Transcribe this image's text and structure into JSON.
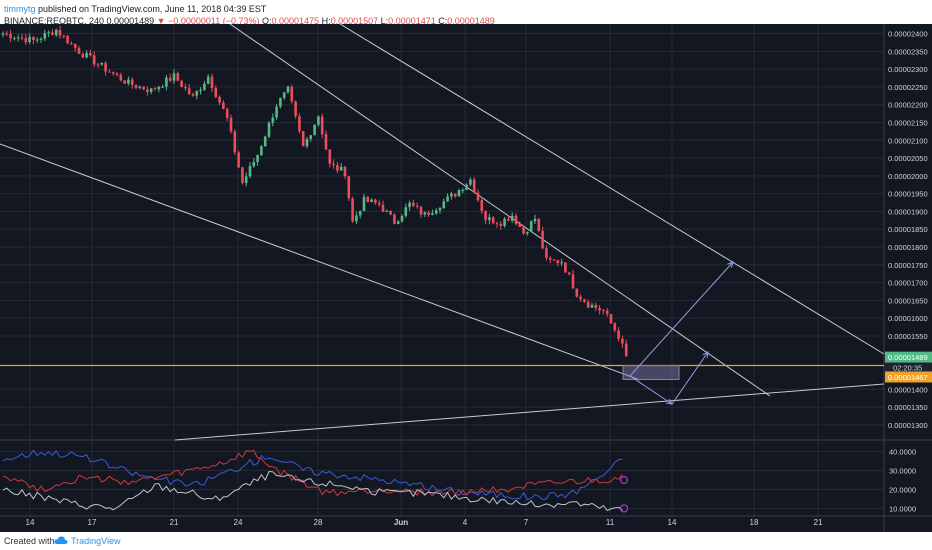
{
  "header": {
    "author": "timmytg",
    "published": "published on TradingView.com, June 11, 2018 04:39 EST",
    "symbol": "BINANCE:REQBTC, 240",
    "price": "0.00001489",
    "change_arrow": "▼",
    "change": "−0.00000011 (−0.73%)",
    "o_label": "O:",
    "o_value": "0.00001475",
    "h_label": "H:",
    "h_value": "0.00001507",
    "l_label": "L:",
    "l_value": "0.00001471",
    "c_label": "C:",
    "c_value": "0.00001489"
  },
  "footer": {
    "created_with": "Created with",
    "brand": "TradingView",
    "logo_icon": "tradingview-cloud-icon"
  },
  "colors": {
    "background": "#131722",
    "grid": "#262a36",
    "bull": "#53b987",
    "bear": "#eb4d5c",
    "trendline": "#c8cad1",
    "projection": "#8f9fe0",
    "support": "#f0a32b",
    "zone": "#8a80b8",
    "axis_text": "#d1d4dc"
  },
  "chart_data": [
    {
      "type": "candlestick",
      "y_ticks": [
        "0.00002400",
        "0.00002350",
        "0.00002300",
        "0.00002250",
        "0.00002200",
        "0.00002150",
        "0.00002100",
        "0.00002050",
        "0.00002000",
        "0.00001950",
        "0.00001900",
        "0.00001850",
        "0.00001800",
        "0.00001750",
        "0.00001700",
        "0.00001650",
        "0.00001600",
        "0.00001550",
        "0.00001400",
        "0.00001350",
        "0.00001300"
      ],
      "ylim": [
        1.28e-05,
        2.41e-05
      ],
      "x_ticks": [
        "14",
        "17",
        "21",
        "24",
        "28",
        "Jun",
        "4",
        "7",
        "11",
        "14",
        "18",
        "21"
      ],
      "last_price_label": "0.00001489",
      "countdown_label": "02:20:35",
      "support_label": "0.00001467",
      "support_level": 1.467e-05,
      "anchors": [
        [
          0,
          2.4e-05
        ],
        [
          8,
          2.38e-05
        ],
        [
          14,
          2.41e-05
        ],
        [
          20,
          2.35e-05
        ],
        [
          27,
          2.3e-05
        ],
        [
          33,
          2.26e-05
        ],
        [
          39,
          2.24e-05
        ],
        [
          45,
          2.28e-05
        ],
        [
          50,
          2.22e-05
        ],
        [
          54,
          2.28e-05
        ],
        [
          59,
          2.16e-05
        ],
        [
          63,
          1.98e-05
        ],
        [
          67,
          2.06e-05
        ],
        [
          72,
          2.2e-05
        ],
        [
          75,
          2.24e-05
        ],
        [
          79,
          2.08e-05
        ],
        [
          83,
          2.17e-05
        ],
        [
          86,
          2.03e-05
        ],
        [
          90,
          2.01e-05
        ],
        [
          92,
          1.87e-05
        ],
        [
          95,
          1.93e-05
        ],
        [
          99,
          1.92e-05
        ],
        [
          103,
          1.87e-05
        ],
        [
          107,
          1.92e-05
        ],
        [
          111,
          1.89e-05
        ],
        [
          115,
          1.92e-05
        ],
        [
          119,
          1.95e-05
        ],
        [
          123,
          1.99e-05
        ],
        [
          127,
          1.88e-05
        ],
        [
          131,
          1.87e-05
        ],
        [
          134,
          1.89e-05
        ],
        [
          137,
          1.84e-05
        ],
        [
          140,
          1.88e-05
        ],
        [
          143,
          1.76e-05
        ],
        [
          147,
          1.76e-05
        ],
        [
          151,
          1.67e-05
        ],
        [
          154,
          1.64e-05
        ],
        [
          158,
          1.62e-05
        ],
        [
          162,
          1.55e-05
        ],
        [
          164,
          1.49e-05
        ]
      ]
    },
    {
      "type": "line",
      "y_ticks": [
        "40.0000",
        "30.0000",
        "20.0000",
        "10.0000"
      ],
      "ylim": [
        6,
        44
      ],
      "series": [
        {
          "color": "#3a5bd9",
          "values": [
            [
              0,
              36
            ],
            [
              10,
              40
            ],
            [
              20,
              38
            ],
            [
              35,
              28
            ],
            [
              50,
              22
            ],
            [
              60,
              30
            ],
            [
              70,
              38
            ],
            [
              80,
              30
            ],
            [
              100,
              25
            ],
            [
              115,
              20
            ],
            [
              125,
              18
            ],
            [
              140,
              16
            ],
            [
              150,
              18
            ],
            [
              158,
              28
            ],
            [
              163,
              36
            ]
          ]
        },
        {
          "color": "#d0383b",
          "values": [
            [
              0,
              28
            ],
            [
              10,
              20
            ],
            [
              20,
              26
            ],
            [
              35,
              24
            ],
            [
              50,
              30
            ],
            [
              58,
              34
            ],
            [
              65,
              40
            ],
            [
              72,
              30
            ],
            [
              85,
              18
            ],
            [
              100,
              20
            ],
            [
              115,
              18
            ],
            [
              130,
              20
            ],
            [
              140,
              22
            ],
            [
              150,
              24
            ],
            [
              160,
              25
            ],
            [
              163,
              28
            ]
          ]
        },
        {
          "color": "#c0c4cc",
          "values": [
            [
              0,
              20
            ],
            [
              10,
              16
            ],
            [
              20,
              12
            ],
            [
              30,
              10
            ],
            [
              40,
              22
            ],
            [
              50,
              18
            ],
            [
              55,
              14
            ],
            [
              62,
              20
            ],
            [
              70,
              28
            ],
            [
              80,
              24
            ],
            [
              90,
              22
            ],
            [
              100,
              18
            ],
            [
              110,
              18
            ],
            [
              120,
              16
            ],
            [
              130,
              14
            ],
            [
              140,
              12
            ],
            [
              150,
              13
            ],
            [
              158,
              10
            ],
            [
              163,
              9
            ]
          ]
        }
      ]
    }
  ]
}
